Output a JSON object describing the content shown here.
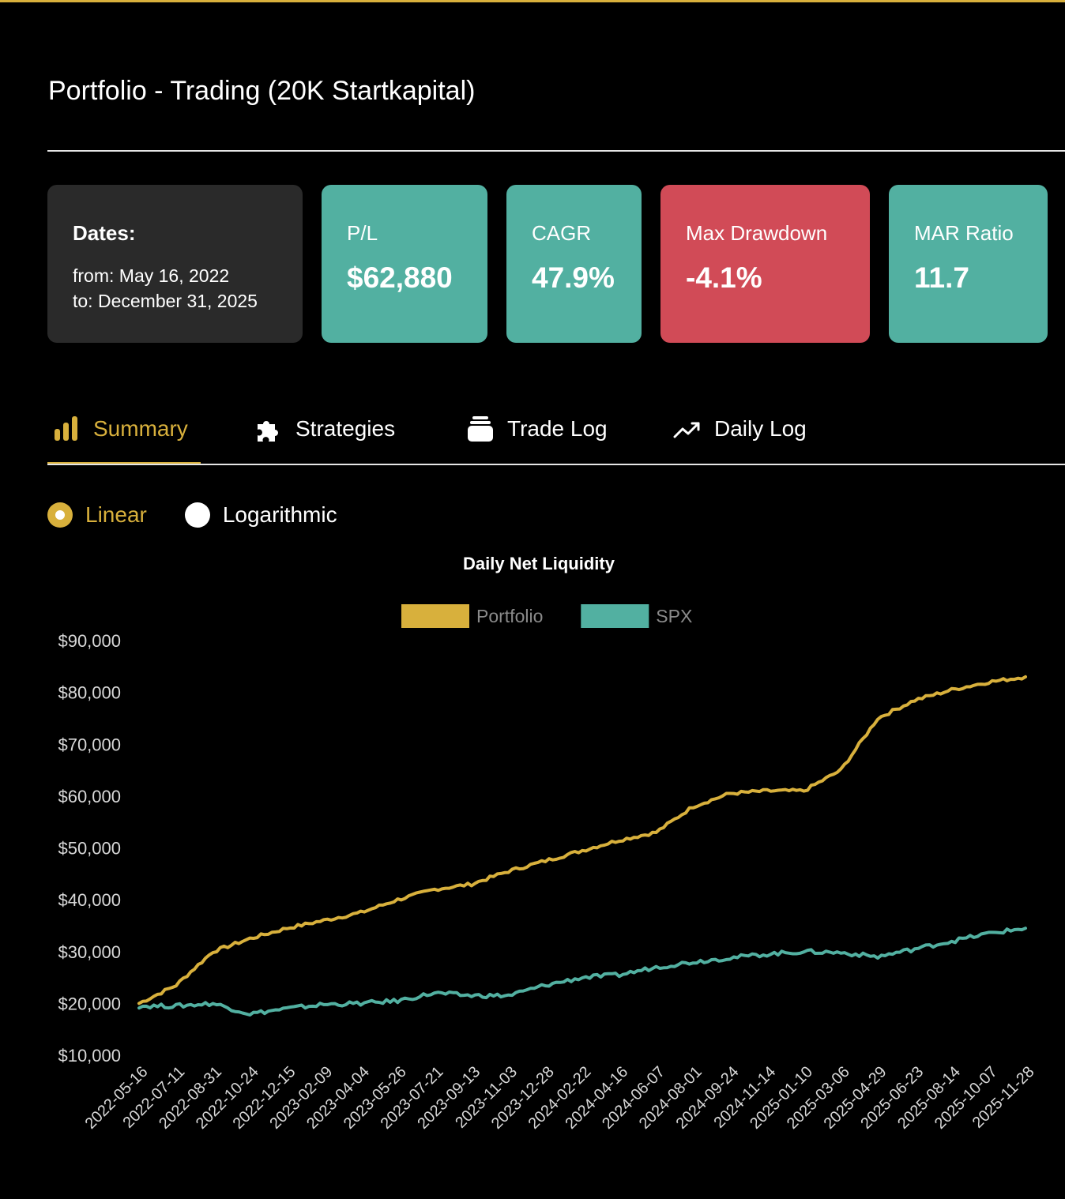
{
  "page": {
    "title": "Portfolio - Trading (20K Startkapital)"
  },
  "colors": {
    "accent": "#d8b03c",
    "teal": "#52b0a1",
    "red": "#d14b57",
    "card_dark": "#2a2a2a",
    "text": "#ffffff",
    "axis_text": "#d8d8d8",
    "legend_text": "#8a8a8a"
  },
  "dates": {
    "label": "Dates:",
    "from": "from: May 16, 2022",
    "to": "to: December 31, 2025"
  },
  "metrics": [
    {
      "label": "P/L",
      "value": "$62,880",
      "color": "#52b0a1"
    },
    {
      "label": "CAGR",
      "value": "47.9%",
      "color": "#52b0a1"
    },
    {
      "label": "Max Drawdown",
      "value": "-4.1%",
      "color": "#d14b57"
    },
    {
      "label": "MAR Ratio",
      "value": "11.7",
      "color": "#52b0a1"
    }
  ],
  "tabs": [
    {
      "label": "Summary",
      "icon": "bar-chart-icon",
      "active": true
    },
    {
      "label": "Strategies",
      "icon": "puzzle-icon",
      "active": false
    },
    {
      "label": "Trade Log",
      "icon": "layers-icon",
      "active": false
    },
    {
      "label": "Daily Log",
      "icon": "trend-icon",
      "active": false
    }
  ],
  "scale": {
    "options": [
      "Linear",
      "Logarithmic"
    ],
    "selected": "Linear"
  },
  "chart_data": {
    "type": "line",
    "title": "Daily Net Liquidity",
    "xlabel": "",
    "ylabel": "",
    "ylim": [
      10000,
      90000
    ],
    "yticks": [
      "$90,000",
      "$80,000",
      "$70,000",
      "$60,000",
      "$50,000",
      "$40,000",
      "$30,000",
      "$20,000",
      "$10,000"
    ],
    "categories": [
      "2022-05-16",
      "2022-07-11",
      "2022-08-31",
      "2022-10-24",
      "2022-12-15",
      "2023-02-09",
      "2023-04-04",
      "2023-05-26",
      "2023-07-21",
      "2023-09-13",
      "2023-11-03",
      "2023-12-28",
      "2024-02-22",
      "2024-04-16",
      "2024-06-07",
      "2024-08-01",
      "2024-09-24",
      "2024-11-14",
      "2025-01-10",
      "2025-03-06",
      "2025-04-29",
      "2025-06-23",
      "2025-08-14",
      "2025-10-07",
      "2025-11-28"
    ],
    "legend": "top",
    "grid": false,
    "series": [
      {
        "name": "Portfolio",
        "color": "#d8b03c",
        "values": [
          20000,
          23500,
          30000,
          32500,
          34500,
          36000,
          37500,
          40000,
          42000,
          43000,
          45500,
          47500,
          49500,
          51500,
          53000,
          58000,
          60500,
          61000,
          61000,
          65000,
          75000,
          78500,
          80500,
          82000,
          83000
        ]
      },
      {
        "name": "SPX",
        "color": "#52b0a1",
        "values": [
          19500,
          19500,
          20000,
          18000,
          19000,
          19800,
          20000,
          20500,
          22000,
          21500,
          21500,
          23500,
          25000,
          25500,
          27000,
          28000,
          28800,
          29500,
          30000,
          29800,
          29000,
          30500,
          32000,
          33500,
          34500
        ]
      }
    ]
  }
}
